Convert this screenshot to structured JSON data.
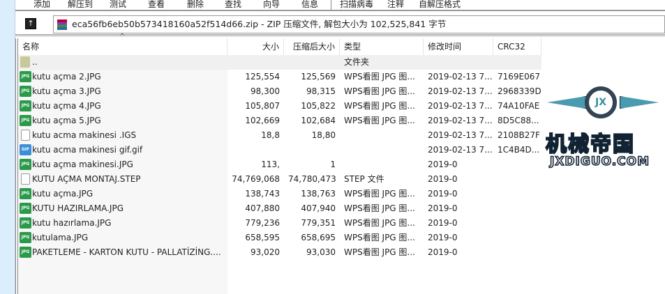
{
  "toolbar": {
    "items": [
      "添加",
      "解压到",
      "测试",
      "查看",
      "删除",
      "查找",
      "向导",
      "信息",
      "扫描病毒",
      "注释",
      "自解压格式"
    ]
  },
  "address": {
    "text": "eca56fb6eb50b573418160a52f514d66.zip - ZIP 压缩文件, 解包大小为 102,525,841 字节",
    "up_icon": "up-arrow-icon",
    "archive_icon": "winrar-icon"
  },
  "columns": [
    "名称",
    "大小",
    "压缩后大小",
    "类型",
    "修改时间",
    "CRC32"
  ],
  "sort_indicator": "^",
  "rows": [
    {
      "icon": "folder",
      "name": "..",
      "size": "",
      "packed": "",
      "type": "文件夹",
      "modified": "",
      "crc": ""
    },
    {
      "icon": "jpg",
      "name": "kutu açma 2.JPG",
      "size": "125,554",
      "packed": "125,569",
      "type": "WPS看图 JPG 图...",
      "modified": "2019-02-13 7...",
      "crc": "7169E067"
    },
    {
      "icon": "jpg",
      "name": "kutu açma 3.JPG",
      "size": "98,300",
      "packed": "98,315",
      "type": "WPS看图 JPG 图...",
      "modified": "2019-02-13 7...",
      "crc": "2968339D"
    },
    {
      "icon": "jpg",
      "name": "kutu açma 4.JPG",
      "size": "105,807",
      "packed": "105,822",
      "type": "WPS看图 JPG 图...",
      "modified": "2019-02-13 7...",
      "crc": "74A10FAE"
    },
    {
      "icon": "jpg",
      "name": "kutu açma 5.JPG",
      "size": "102,669",
      "packed": "102,684",
      "type": "WPS看图 JPG 图...",
      "modified": "2019-02-13 7...",
      "crc": "8D5C88..."
    },
    {
      "icon": "file",
      "name": "kutu acma makinesi  .IGS",
      "size": "18,8",
      "packed": "18,80",
      "type": "",
      "modified": "2019-02-13 7...",
      "crc": "2108B27F"
    },
    {
      "icon": "gif",
      "name": "kutu acma makinesi gif.gif",
      "size": "",
      "packed": "",
      "type": "",
      "modified": "2019-02-13 7...",
      "crc": "1C4B4D..."
    },
    {
      "icon": "jpg",
      "name": "kutu açma makinesi.JPG",
      "size": "113,",
      "packed": "1",
      "type": "",
      "modified": "2019-0",
      "crc": ""
    },
    {
      "icon": "file",
      "name": "KUTU AÇMA MONTAJ.STEP",
      "size": "74,769,068",
      "packed": "74,780,473",
      "type": "STEP 文件",
      "modified": "2019-0",
      "crc": ""
    },
    {
      "icon": "jpg",
      "name": "kutu açma.JPG",
      "size": "138,743",
      "packed": "138,763",
      "type": "WPS看图 JPG 图...",
      "modified": "2019-0",
      "crc": ""
    },
    {
      "icon": "jpg",
      "name": "KUTU HAZIRLAMA.JPG",
      "size": "407,880",
      "packed": "407,940",
      "type": "WPS看图 JPG 图...",
      "modified": "2019-0",
      "crc": ""
    },
    {
      "icon": "jpg",
      "name": "kutu hazırlama.JPG",
      "size": "779,236",
      "packed": "779,351",
      "type": "WPS看图 JPG 图...",
      "modified": "2019-0",
      "crc": ""
    },
    {
      "icon": "jpg",
      "name": "kutulama.JPG",
      "size": "658,595",
      "packed": "658,695",
      "type": "WPS看图 JPG 图...",
      "modified": "2019-0",
      "crc": ""
    },
    {
      "icon": "jpg",
      "name": "PAKETLEME - KARTON KUTU - PALLATİZİNG....",
      "size": "93,020",
      "packed": "93,030",
      "type": "WPS看图 JPG 图...",
      "modified": "2019-0",
      "crc": ""
    }
  ],
  "watermark": {
    "cn": "机械帝国",
    "en": "JXDIGUO.COM",
    "badge": "JX"
  }
}
